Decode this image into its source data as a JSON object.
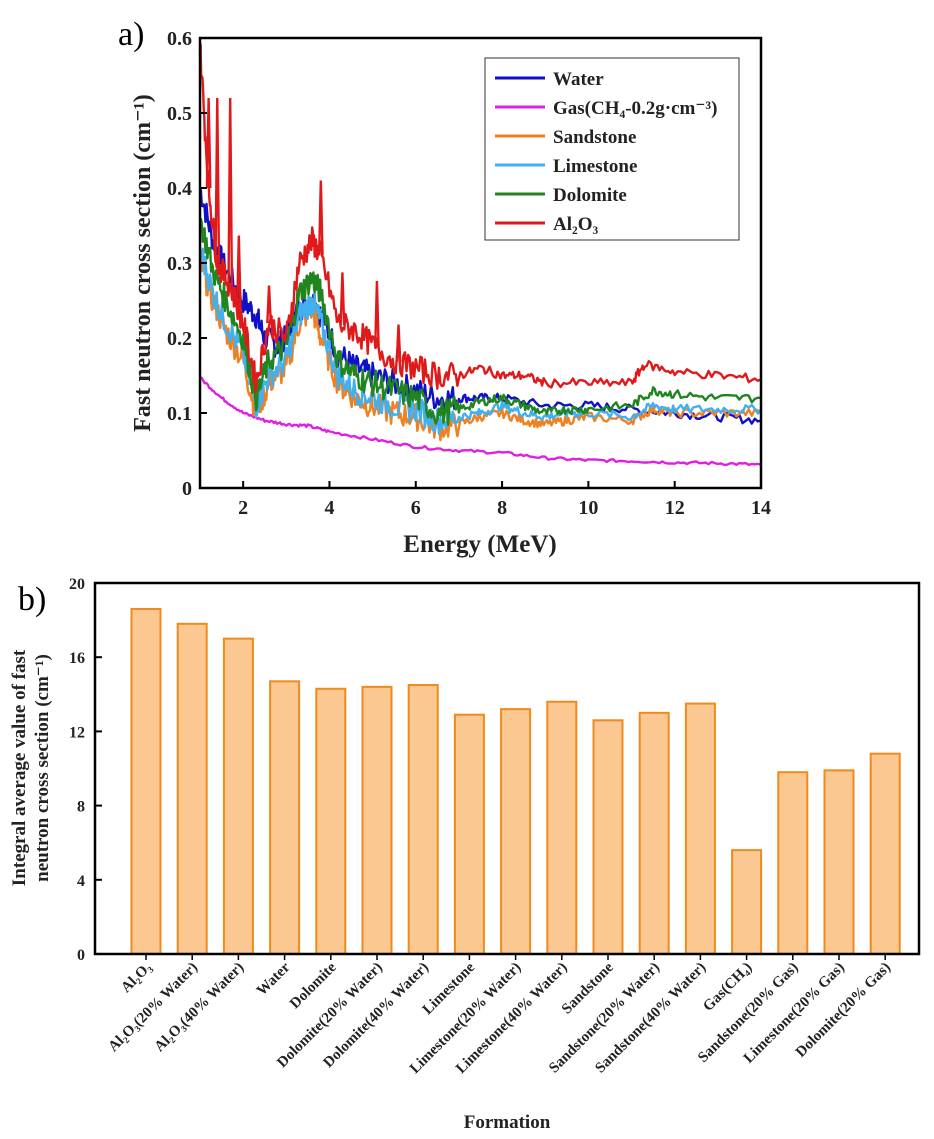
{
  "chart_data": [
    {
      "type": "line",
      "panel_label": "a)",
      "xlabel": "Energy (MeV)",
      "ylabel": "Fast neutron cross section (cm⁻¹)",
      "xlim": [
        1,
        14
      ],
      "ylim": [
        0,
        0.6
      ],
      "xticks": [
        "2",
        "4",
        "6",
        "8",
        "10",
        "12",
        "14"
      ],
      "yticks": [
        "0",
        "0.1",
        "0.2",
        "0.3",
        "0.4",
        "0.5",
        "0.6"
      ],
      "legend_position": "top-right",
      "series": [
        {
          "name": "Water",
          "color": "#1010c8",
          "x": [
            1.0,
            1.3,
            1.6,
            2.0,
            2.3,
            2.5,
            2.8,
            3.0,
            3.3,
            3.6,
            3.8,
            4.2,
            4.6,
            5.0,
            5.5,
            6.0,
            6.5,
            7.0,
            7.5,
            8.0,
            9.0,
            10.0,
            11.0,
            12.0,
            13.0,
            14.0
          ],
          "y": [
            0.4,
            0.33,
            0.29,
            0.25,
            0.23,
            0.2,
            0.19,
            0.2,
            0.24,
            0.25,
            0.23,
            0.18,
            0.16,
            0.15,
            0.14,
            0.13,
            0.12,
            0.12,
            0.12,
            0.12,
            0.11,
            0.11,
            0.105,
            0.1,
            0.095,
            0.09
          ]
        },
        {
          "name": "Gas(CH₄-0.2g·cm⁻³)",
          "color": "#e020e0",
          "x": [
            1.0,
            1.5,
            2.0,
            2.5,
            3.0,
            3.5,
            4.0,
            5.0,
            6.0,
            7.0,
            8.0,
            9.0,
            10.0,
            11.0,
            12.0,
            13.0,
            14.0
          ],
          "y": [
            0.147,
            0.12,
            0.1,
            0.09,
            0.085,
            0.083,
            0.075,
            0.065,
            0.055,
            0.05,
            0.047,
            0.04,
            0.037,
            0.036,
            0.034,
            0.033,
            0.031
          ]
        },
        {
          "name": "Sandstone",
          "color": "#f08020",
          "x": [
            1.0,
            1.3,
            1.6,
            2.0,
            2.3,
            2.6,
            3.0,
            3.3,
            3.6,
            3.8,
            4.2,
            4.6,
            5.0,
            5.5,
            6.0,
            6.5,
            7.0,
            7.5,
            8.0,
            8.5,
            9.0,
            9.5,
            10.0,
            11.0,
            11.5,
            12.0,
            13.0,
            14.0
          ],
          "y": [
            0.3,
            0.25,
            0.21,
            0.17,
            0.1,
            0.14,
            0.16,
            0.22,
            0.24,
            0.2,
            0.14,
            0.12,
            0.11,
            0.1,
            0.095,
            0.08,
            0.085,
            0.095,
            0.1,
            0.09,
            0.085,
            0.09,
            0.095,
            0.09,
            0.105,
            0.1,
            0.1,
            0.1
          ]
        },
        {
          "name": "Limestone",
          "color": "#40b0f0",
          "x": [
            1.0,
            1.3,
            1.6,
            2.0,
            2.3,
            2.6,
            3.0,
            3.3,
            3.6,
            3.8,
            4.2,
            4.6,
            5.0,
            5.5,
            6.0,
            6.5,
            7.0,
            7.5,
            8.0,
            8.5,
            9.0,
            9.5,
            10.0,
            11.0,
            11.5,
            12.0,
            13.0,
            14.0
          ],
          "y": [
            0.32,
            0.26,
            0.22,
            0.18,
            0.11,
            0.15,
            0.17,
            0.23,
            0.25,
            0.22,
            0.15,
            0.13,
            0.12,
            0.11,
            0.105,
            0.09,
            0.095,
            0.1,
            0.11,
            0.1,
            0.095,
            0.1,
            0.1,
            0.095,
            0.11,
            0.105,
            0.105,
            0.105
          ]
        },
        {
          "name": "Dolomite",
          "color": "#20851f",
          "x": [
            1.0,
            1.3,
            1.6,
            2.0,
            2.3,
            2.6,
            3.0,
            3.3,
            3.6,
            3.8,
            4.2,
            4.6,
            5.0,
            5.5,
            6.0,
            6.5,
            7.0,
            7.5,
            8.0,
            8.5,
            9.0,
            9.5,
            10.0,
            11.0,
            11.5,
            12.0,
            13.0,
            14.0
          ],
          "y": [
            0.36,
            0.29,
            0.25,
            0.2,
            0.12,
            0.17,
            0.19,
            0.26,
            0.28,
            0.26,
            0.17,
            0.15,
            0.14,
            0.13,
            0.12,
            0.1,
            0.105,
            0.115,
            0.12,
            0.11,
            0.1,
            0.105,
            0.105,
            0.11,
            0.13,
            0.125,
            0.12,
            0.12
          ]
        },
        {
          "name": "Al₂O₃",
          "color": "#e01a1a",
          "x": [
            1.0,
            1.2,
            1.4,
            1.7,
            2.0,
            2.3,
            2.6,
            3.0,
            3.3,
            3.6,
            3.8,
            4.2,
            4.6,
            5.0,
            5.5,
            6.0,
            6.5,
            7.0,
            7.5,
            8.0,
            8.5,
            9.0,
            10.0,
            11.0,
            11.3,
            12.0,
            13.0,
            14.0
          ],
          "y": [
            0.59,
            0.4,
            0.3,
            0.27,
            0.22,
            0.14,
            0.22,
            0.2,
            0.3,
            0.33,
            0.31,
            0.22,
            0.21,
            0.19,
            0.17,
            0.16,
            0.15,
            0.15,
            0.16,
            0.15,
            0.15,
            0.14,
            0.14,
            0.14,
            0.165,
            0.155,
            0.15,
            0.145
          ]
        }
      ],
      "spikes_on_Al2O3": [
        1.2,
        1.4,
        1.7,
        1.9,
        2.6,
        3.8,
        4.3,
        5.1,
        5.6
      ]
    },
    {
      "type": "bar",
      "panel_label": "b)",
      "xlabel": "Formation",
      "ylabel_line1": "Integral average value of fast",
      "ylabel_line2": "neutron cross section (cm⁻¹)",
      "ylim": [
        0,
        20
      ],
      "yticks": [
        "0",
        "4",
        "8",
        "12",
        "16",
        "20"
      ],
      "bar_color": "#fbc891",
      "bar_edge": "#f08a1c",
      "categories": [
        "Al₂O₃",
        "Al₂O₃(20% Water)",
        "Al₂O₃(40% Water)",
        "Water",
        "Dolomite",
        "Dolomite(20% Water)",
        "Dolomite(40% Water)",
        "Limestone",
        "Limestone(20% Water)",
        "Limestone(40% Water)",
        "Sandstone",
        "Sandstone(20% Water)",
        "Sandstone(40% Water)",
        "Gas(CH₄)",
        "Sandstone(20% Gas)",
        "Limestone(20% Gas)",
        "Dolomite(20% Gas)"
      ],
      "values": [
        18.6,
        17.8,
        17.0,
        14.7,
        14.3,
        14.4,
        14.5,
        12.9,
        13.2,
        13.6,
        12.6,
        13.0,
        13.5,
        5.6,
        9.8,
        9.9,
        10.8
      ]
    }
  ]
}
